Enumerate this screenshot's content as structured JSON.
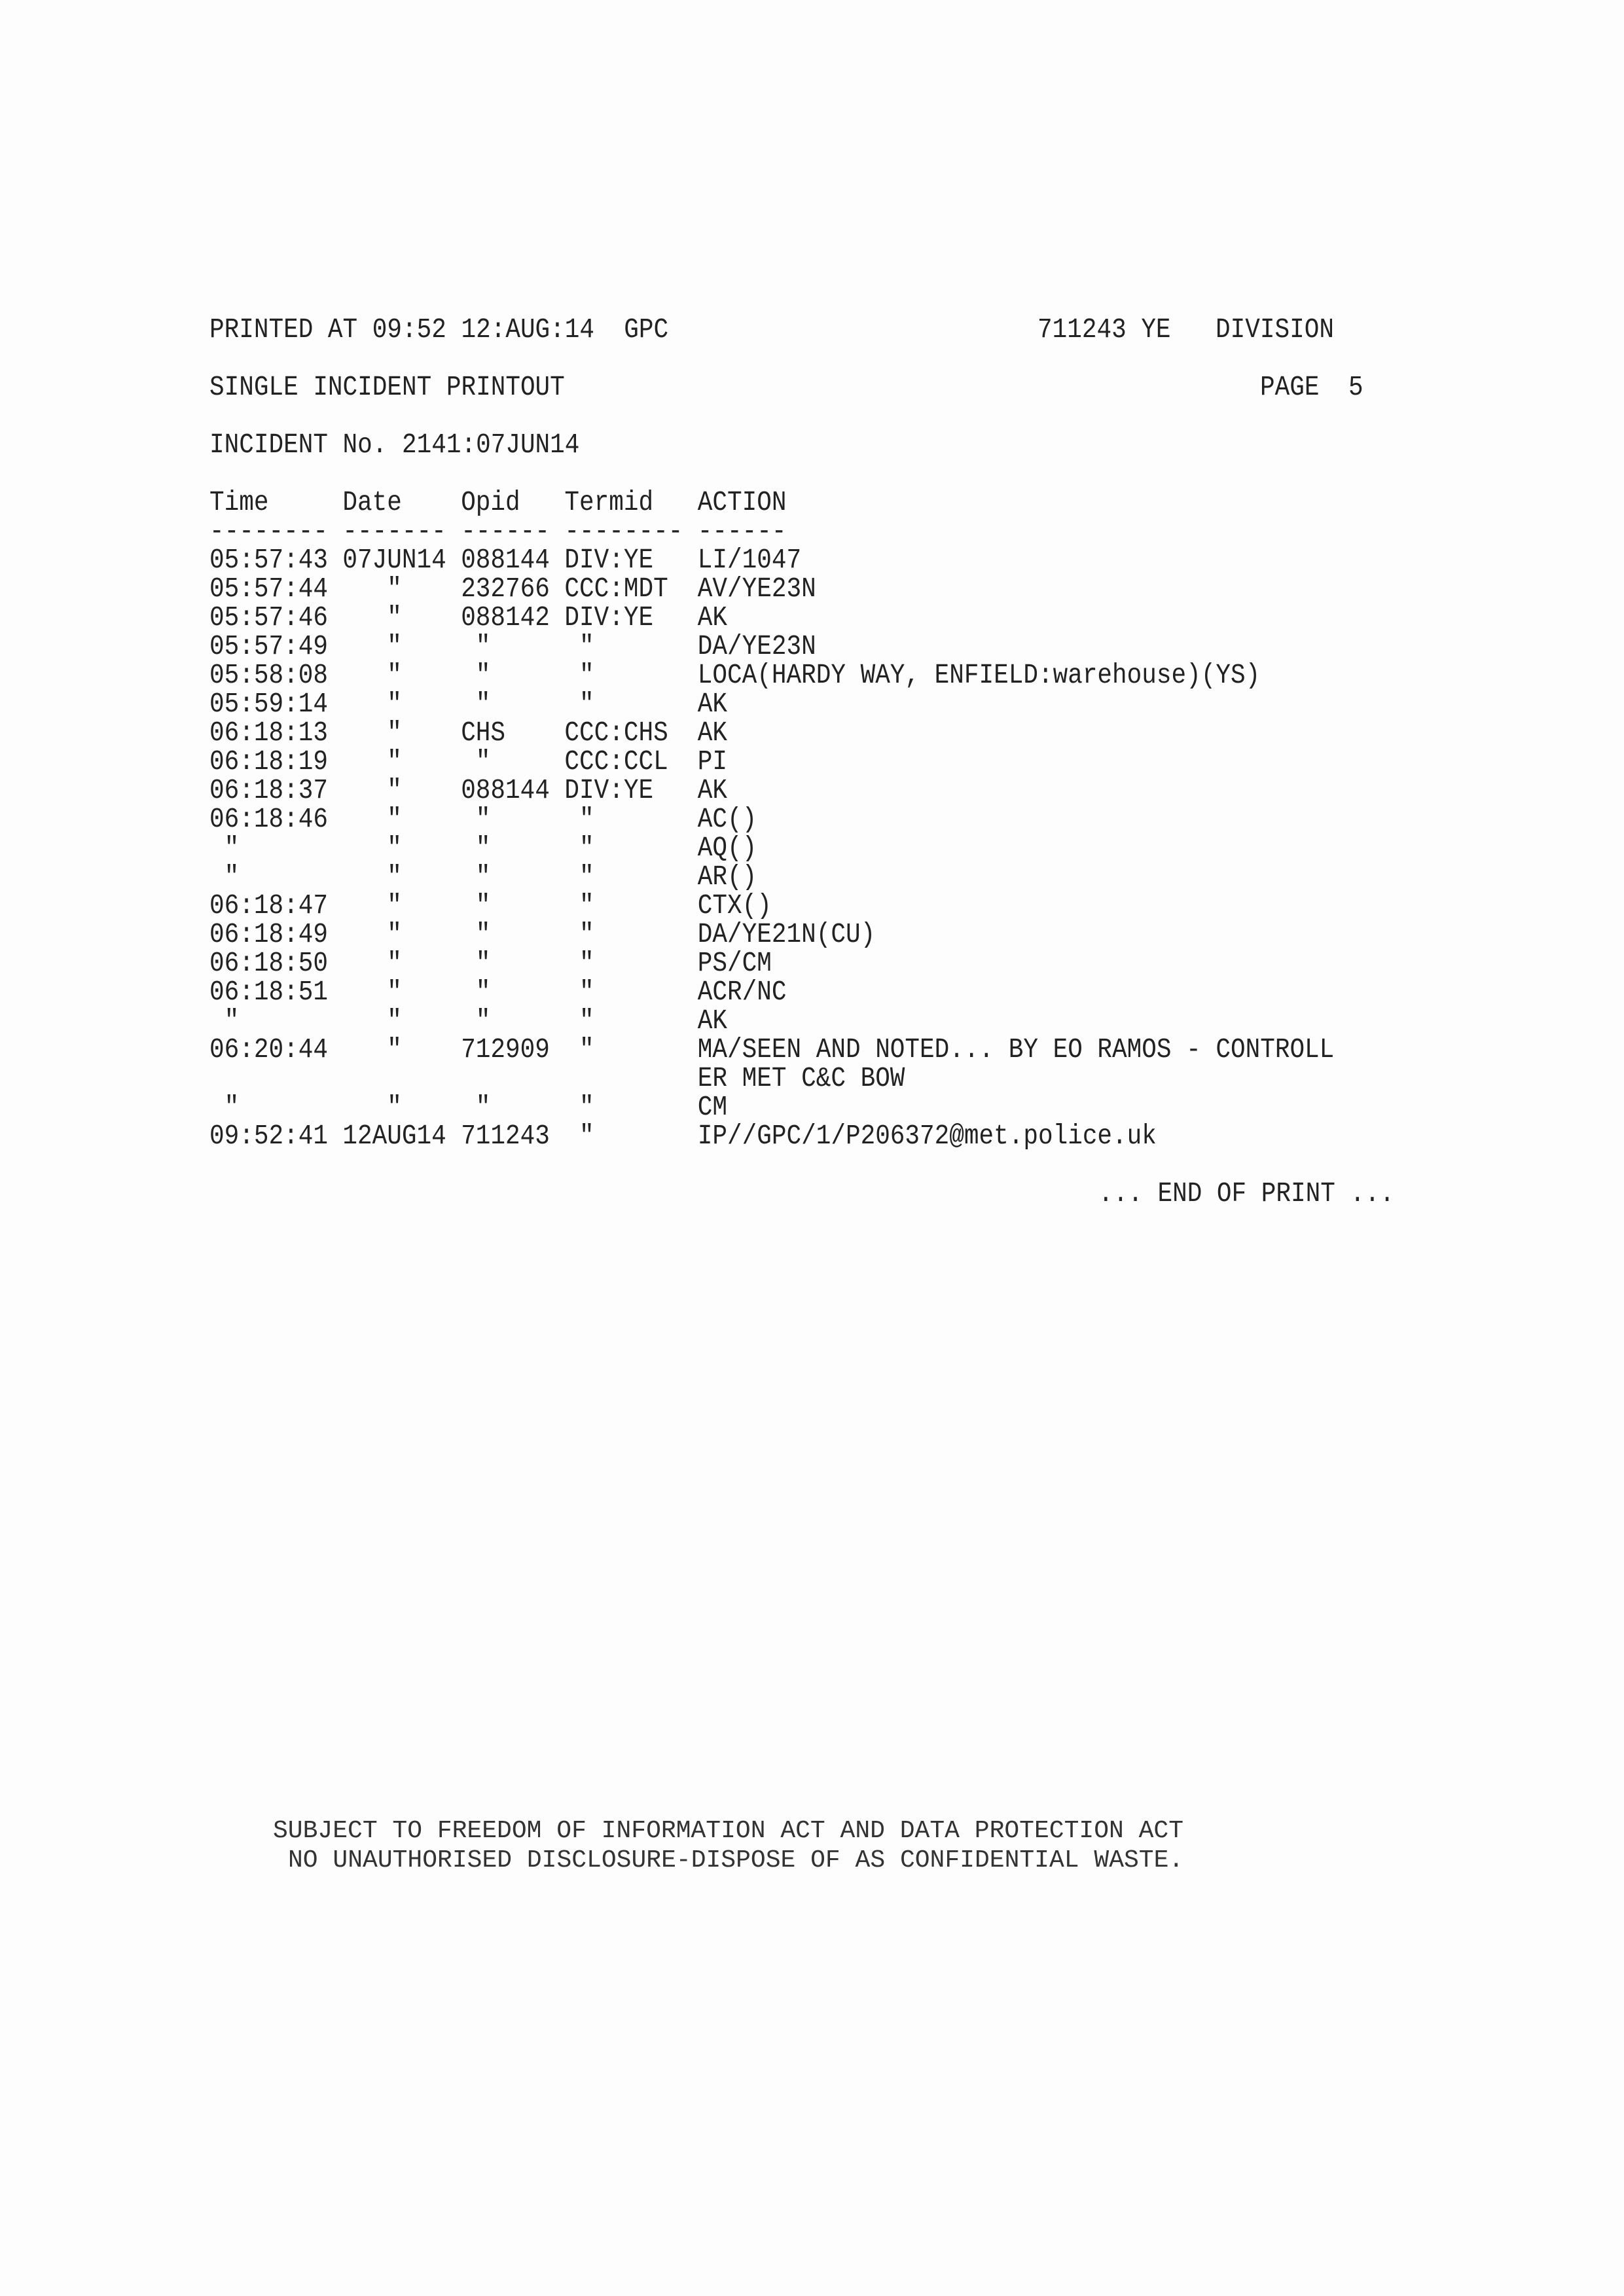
{
  "header": {
    "printed_at": "PRINTED AT 09:52 12:AUG:14  GPC",
    "operator": "711243 YE",
    "division": "DIVISION",
    "title": "SINGLE INCIDENT PRINTOUT",
    "page_label": "PAGE",
    "page_number": "5",
    "incident": "INCIDENT No. 2141:07JUN14"
  },
  "columns": [
    "Time",
    "Date",
    "Opid",
    "Termid",
    "ACTION"
  ],
  "dashes": [
    "--------",
    "-------",
    "------",
    "--------",
    "------"
  ],
  "rows": [
    [
      "05:57:43",
      "07JUN14",
      "088144",
      "DIV:YE",
      "LI/1047"
    ],
    [
      "05:57:44",
      "\"",
      "232766",
      "CCC:MDT",
      "AV/YE23N"
    ],
    [
      "05:57:46",
      "\"",
      "088142",
      "DIV:YE",
      "AK"
    ],
    [
      "05:57:49",
      "\"",
      "\"",
      "\"",
      "DA/YE23N"
    ],
    [
      "05:58:08",
      "\"",
      "\"",
      "\"",
      "LOCA(HARDY WAY, ENFIELD:warehouse)(YS)"
    ],
    [
      "05:59:14",
      "\"",
      "\"",
      "\"",
      "AK"
    ],
    [
      "06:18:13",
      "\"",
      "CHS",
      "CCC:CHS",
      "AK"
    ],
    [
      "06:18:19",
      "\"",
      "\"",
      "CCC:CCL",
      "PI"
    ],
    [
      "06:18:37",
      "\"",
      "088144",
      "DIV:YE",
      "AK"
    ],
    [
      "06:18:46",
      "\"",
      "\"",
      "\"",
      "AC()"
    ],
    [
      "\"",
      "\"",
      "\"",
      "\"",
      "AQ()"
    ],
    [
      "\"",
      "\"",
      "\"",
      "\"",
      "AR()"
    ],
    [
      "06:18:47",
      "\"",
      "\"",
      "\"",
      "CTX()"
    ],
    [
      "06:18:49",
      "\"",
      "\"",
      "\"",
      "DA/YE21N(CU)"
    ],
    [
      "06:18:50",
      "\"",
      "\"",
      "\"",
      "PS/CM"
    ],
    [
      "06:18:51",
      "\"",
      "\"",
      "\"",
      "ACR/NC"
    ],
    [
      "\"",
      "\"",
      "\"",
      "\"",
      "AK"
    ],
    [
      "06:20:44",
      "\"",
      "712909",
      "\"",
      "MA/SEEN AND NOTED... BY EO RAMOS - CONTROLL"
    ],
    [
      "",
      "",
      "",
      "",
      "ER MET C&C BOW"
    ],
    [
      "\"",
      "\"",
      "\"",
      "\"",
      "CM"
    ],
    [
      "09:52:41",
      "12AUG14",
      "711243",
      "\"",
      "IP//GPC/1/P206372@met.police.uk"
    ]
  ],
  "end_of_print": "... END OF PRINT ...",
  "footer": {
    "line1": "SUBJECT TO FREEDOM OF INFORMATION ACT AND DATA PROTECTION ACT",
    "line2": "NO UNAUTHORISED DISCLOSURE-DISPOSE OF AS CONFIDENTIAL WASTE."
  }
}
